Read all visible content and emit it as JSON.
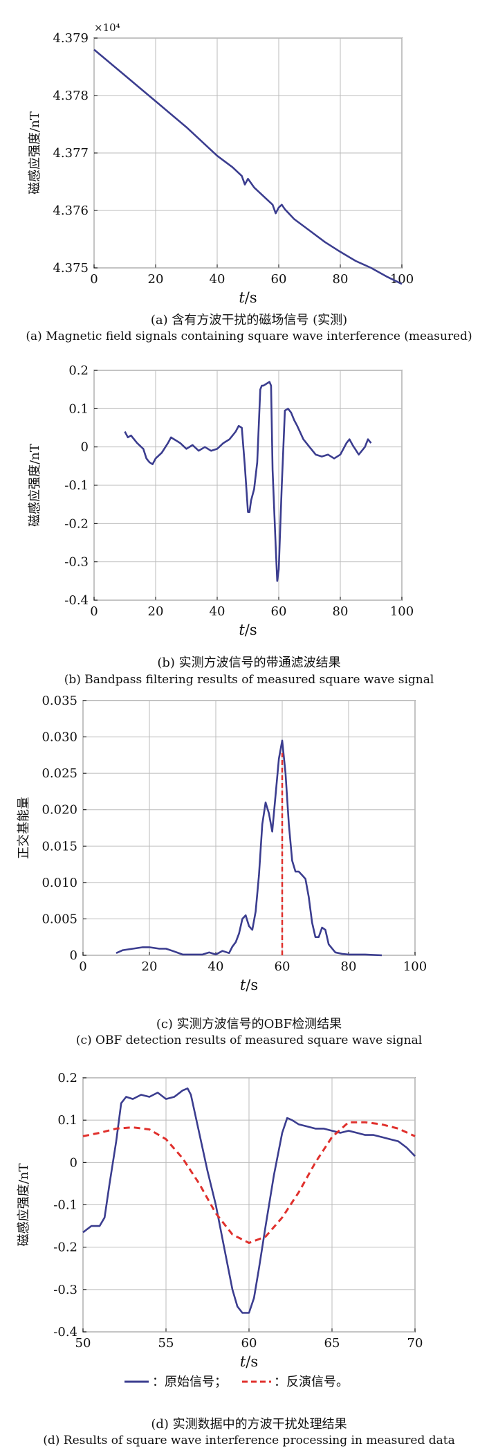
{
  "colors": {
    "series": "#3b3d8f",
    "inversion": "#e0302c",
    "axis": "#000000",
    "grid": "#bbbbbb"
  },
  "chart_data": [
    {
      "type": "line",
      "title": "",
      "xlabel": "t/s",
      "ylabel": "磁感应强度/nT",
      "exponent": "×10⁴",
      "xlim": [
        0,
        100
      ],
      "ylim": [
        4.375,
        4.379
      ],
      "xticks": [
        0,
        20,
        40,
        60,
        80,
        100
      ],
      "yticks": [
        4.375,
        4.376,
        4.377,
        4.378,
        4.379
      ],
      "ytick_labels": [
        "4.375",
        "4.376",
        "4.377",
        "4.378",
        "4.379"
      ],
      "grid": true,
      "series": [
        {
          "x": [
            0,
            10,
            20,
            30,
            40,
            45,
            48,
            49,
            50,
            52,
            55,
            58,
            59,
            60,
            61,
            62,
            65,
            70,
            75,
            80,
            85,
            90,
            95,
            100
          ],
          "y": [
            4.3788,
            4.37835,
            4.3779,
            4.37745,
            4.37695,
            4.37675,
            4.3766,
            4.37645,
            4.37655,
            4.3764,
            4.37625,
            4.3761,
            4.37595,
            4.37605,
            4.3761,
            4.37602,
            4.37585,
            4.37565,
            4.37545,
            4.37528,
            4.37512,
            4.375,
            4.37485,
            4.37472
          ]
        }
      ],
      "caption_zh": "(a) 含有方波干扰的磁场信号 (实测)",
      "caption_en": "(a) Magnetic field signals containing square wave interference (measured)"
    },
    {
      "type": "line",
      "title": "",
      "xlabel": "t/s",
      "ylabel": "磁感应强度/nT",
      "xlim": [
        0,
        100
      ],
      "ylim": [
        -0.4,
        0.2
      ],
      "xticks": [
        0,
        20,
        40,
        60,
        80,
        100
      ],
      "yticks": [
        -0.4,
        -0.3,
        -0.2,
        -0.1,
        0,
        0.1,
        0.2
      ],
      "ytick_labels": [
        "-0.4",
        "-0.3",
        "-0.2",
        "-0.1",
        "0",
        "0.1",
        "0.2"
      ],
      "grid": true,
      "series": [
        {
          "x": [
            10,
            11,
            12,
            14,
            16,
            17,
            18,
            19,
            20,
            22,
            24,
            25,
            26,
            28,
            30,
            32,
            34,
            36,
            38,
            40,
            42,
            44,
            45,
            46,
            47,
            48,
            49,
            50,
            50.5,
            51,
            52,
            53,
            54,
            54.5,
            55,
            56,
            57,
            57.5,
            58,
            59,
            59.5,
            60,
            61,
            62,
            63,
            64,
            65,
            66,
            68,
            70,
            72,
            74,
            76,
            78,
            80,
            82,
            83,
            84,
            86,
            88,
            89,
            90
          ],
          "y": [
            0.04,
            0.025,
            0.03,
            0.01,
            -0.005,
            -0.03,
            -0.04,
            -0.045,
            -0.03,
            -0.015,
            0.01,
            0.025,
            0.02,
            0.01,
            -0.005,
            0.005,
            -0.01,
            0.0,
            -0.01,
            -0.005,
            0.01,
            0.02,
            0.03,
            0.04,
            0.055,
            0.05,
            -0.05,
            -0.17,
            -0.17,
            -0.14,
            -0.11,
            -0.04,
            0.15,
            0.16,
            0.16,
            0.165,
            0.17,
            0.16,
            -0.06,
            -0.26,
            -0.35,
            -0.32,
            -0.1,
            0.095,
            0.1,
            0.09,
            0.07,
            0.055,
            0.02,
            0.0,
            -0.02,
            -0.025,
            -0.02,
            -0.03,
            -0.02,
            0.01,
            0.02,
            0.005,
            -0.02,
            0.0,
            0.02,
            0.01
          ]
        }
      ],
      "caption_zh": "(b) 实测方波信号的带通滤波结果",
      "caption_en": "(b) Bandpass filtering results of measured square wave signal"
    },
    {
      "type": "line",
      "title": "",
      "xlabel": "t/s",
      "ylabel": "正交基能量",
      "xlim": [
        0,
        100
      ],
      "ylim": [
        0,
        0.035
      ],
      "xticks": [
        0,
        20,
        40,
        60,
        80,
        100
      ],
      "yticks": [
        0,
        0.005,
        0.01,
        0.015,
        0.02,
        0.025,
        0.03,
        0.035
      ],
      "ytick_labels": [
        "0",
        "0.005",
        "0.010",
        "0.015",
        "0.020",
        "0.025",
        "0.030",
        "0.035"
      ],
      "grid": true,
      "series": [
        {
          "x": [
            10,
            12,
            15,
            18,
            20,
            23,
            25,
            27,
            30,
            33,
            36,
            38,
            40,
            42,
            44,
            45,
            46,
            47,
            48,
            49,
            50,
            51,
            52,
            53,
            54,
            55,
            56,
            57,
            58,
            59,
            60,
            61,
            62,
            63,
            64,
            65,
            66,
            67,
            68,
            69,
            70,
            71,
            72,
            73,
            74,
            76,
            78,
            80,
            85,
            90
          ],
          "y": [
            0.0003,
            0.0007,
            0.0009,
            0.0011,
            0.0011,
            0.0009,
            0.0009,
            0.0006,
            0.0001,
            0.0001,
            0.0001,
            0.0004,
            0.0001,
            0.0006,
            0.0003,
            0.0012,
            0.0018,
            0.003,
            0.005,
            0.0055,
            0.004,
            0.0035,
            0.006,
            0.011,
            0.018,
            0.021,
            0.0195,
            0.017,
            0.022,
            0.027,
            0.0295,
            0.025,
            0.018,
            0.013,
            0.0115,
            0.0115,
            0.011,
            0.0105,
            0.008,
            0.0045,
            0.0025,
            0.0025,
            0.0038,
            0.0035,
            0.0015,
            0.0004,
            0.0002,
            0.0001,
            0.0001,
            0.0
          ]
        }
      ],
      "marker_x": 60,
      "marker_y": 0.0278,
      "caption_zh": "(c) 实测方波信号的OBF检测结果",
      "caption_en": "(c) OBF detection results of measured square wave signal"
    },
    {
      "type": "line",
      "title": "",
      "xlabel": "t/s",
      "ylabel": "磁感应强度/nT",
      "xlim": [
        50,
        70
      ],
      "ylim": [
        -0.4,
        0.2
      ],
      "xticks": [
        50,
        55,
        60,
        65,
        70
      ],
      "yticks": [
        -0.4,
        -0.3,
        -0.2,
        -0.1,
        0,
        0.1,
        0.2
      ],
      "ytick_labels": [
        "-0.4",
        "-0.3",
        "-0.2",
        "-0.1",
        "0",
        "0.1",
        "0.2"
      ],
      "grid": true,
      "series": [
        {
          "name": "原始信号",
          "x": [
            50,
            50.5,
            51,
            51.3,
            51.6,
            52,
            52.3,
            52.6,
            53,
            53.5,
            54,
            54.5,
            55,
            55.5,
            56,
            56.3,
            56.5,
            57,
            57.5,
            58,
            58.5,
            59,
            59.3,
            59.6,
            60,
            60.3,
            60.6,
            61,
            61.5,
            62,
            62.3,
            62.6,
            63,
            63.5,
            64,
            64.5,
            65,
            65.5,
            66,
            66.5,
            67,
            67.5,
            68,
            68.5,
            69,
            69.5,
            70
          ],
          "y": [
            -0.165,
            -0.15,
            -0.15,
            -0.13,
            -0.05,
            0.05,
            0.14,
            0.155,
            0.15,
            0.16,
            0.155,
            0.165,
            0.15,
            0.155,
            0.17,
            0.175,
            0.16,
            0.07,
            -0.02,
            -0.1,
            -0.2,
            -0.3,
            -0.34,
            -0.355,
            -0.355,
            -0.32,
            -0.25,
            -0.15,
            -0.03,
            0.07,
            0.105,
            0.1,
            0.09,
            0.085,
            0.08,
            0.08,
            0.075,
            0.07,
            0.075,
            0.07,
            0.065,
            0.065,
            0.06,
            0.055,
            0.05,
            0.035,
            0.015
          ]
        },
        {
          "name": "反演信号",
          "x": [
            50,
            51,
            52,
            53,
            54,
            55,
            56,
            57,
            58,
            59,
            60,
            61,
            62,
            63,
            64,
            65,
            66,
            67,
            68,
            69,
            70
          ],
          "y": [
            0.062,
            0.07,
            0.08,
            0.083,
            0.078,
            0.055,
            0.01,
            -0.05,
            -0.12,
            -0.17,
            -0.19,
            -0.175,
            -0.13,
            -0.07,
            0.0,
            0.06,
            0.095,
            0.095,
            0.09,
            0.08,
            0.062
          ]
        }
      ],
      "legend": {
        "placement": "bottom",
        "sep": "；",
        "end": "。"
      },
      "caption_zh": "(d) 实测数据中的方波干扰处理结果",
      "caption_en": "(d) Results of square wave interference processing in measured data"
    }
  ]
}
